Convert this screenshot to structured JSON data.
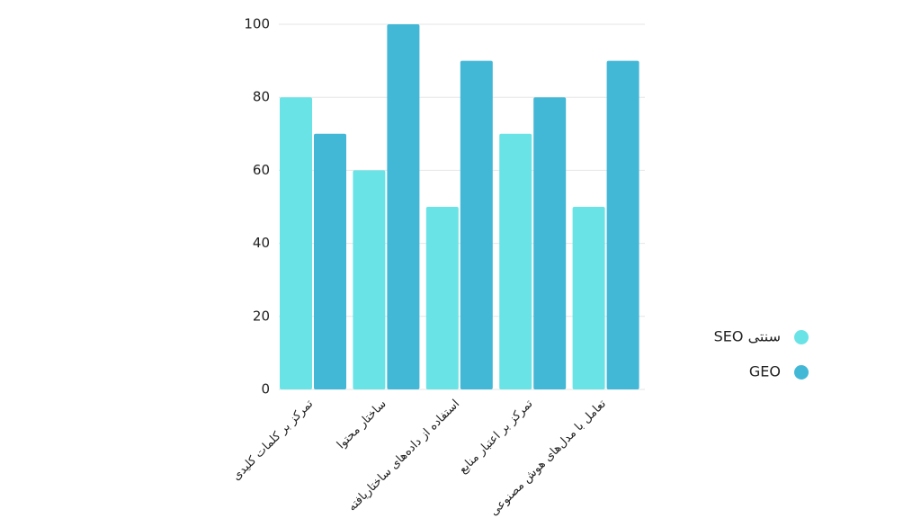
{
  "chart_data": {
    "type": "bar",
    "categories": [
      "تمرکز بر کلمات کلیدی",
      "ساختار محتوا",
      "استفاده از داده‌های ساختاریافته",
      "تمرکز بر اعتبار منابع",
      "تعامل با مدل‌های هوش مصنوعی"
    ],
    "series": [
      {
        "name": "SEO سنتی",
        "color": "#6ae3e6",
        "values": [
          80,
          60,
          50,
          70,
          50
        ]
      },
      {
        "name": "GEO",
        "color": "#42b8d6",
        "values": [
          70,
          100,
          90,
          80,
          90
        ]
      }
    ],
    "ylim": [
      0,
      100
    ],
    "yticks": [
      0,
      20,
      40,
      60,
      80,
      100
    ],
    "grid": true,
    "legend": "right"
  }
}
